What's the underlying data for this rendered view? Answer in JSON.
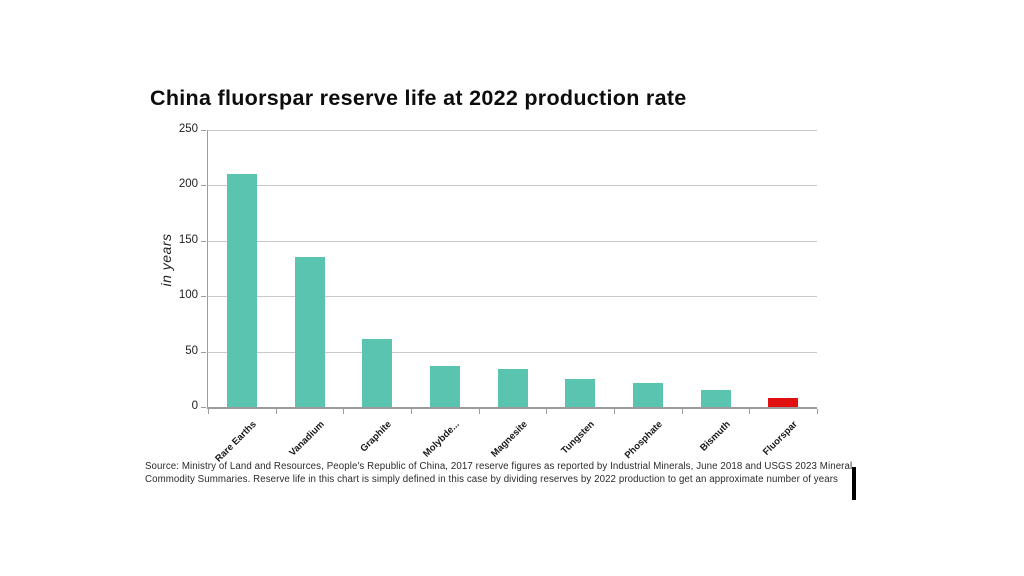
{
  "page": {
    "background": "#ffffff"
  },
  "title": "China fluorspar reserve life at 2022 production rate",
  "chart_data": {
    "type": "bar",
    "title": "China fluorspar reserve life at 2022 production rate",
    "xlabel": "",
    "ylabel": "in years",
    "ylim": [
      0,
      250
    ],
    "yticks": [
      0,
      50,
      100,
      150,
      200,
      250
    ],
    "grid": true,
    "legend": "none",
    "categories": [
      "Rare Earths",
      "Vanadium",
      "Graphite",
      "Molybde...",
      "Magnesite",
      "Tungsten",
      "Phosphate",
      "Bismuth",
      "Fluorspar"
    ],
    "values": [
      210,
      135,
      61,
      37,
      34,
      25,
      22,
      15,
      8
    ],
    "bar_colors": [
      "#5ac4b0",
      "#5ac4b0",
      "#5ac4b0",
      "#5ac4b0",
      "#5ac4b0",
      "#5ac4b0",
      "#5ac4b0",
      "#5ac4b0",
      "#e01010"
    ],
    "highlight_category": "Fluorspar",
    "colors": {
      "default_bar": "#5ac4b0",
      "highlight_bar": "#e01010",
      "gridline": "#c7c7c7",
      "axis": "#9b9b9b"
    }
  },
  "source": {
    "line1": "Source: Ministry of Land and Resources, People's Republic of China, 2017 reserve figures as reported by Industrial Minerals, June 2018 and USGS 2023 Mineral",
    "line2": "Commodity Summaries. Reserve life in this chart is simply defined in this case by dividing reserves by 2022 production to get an approximate number of years"
  }
}
